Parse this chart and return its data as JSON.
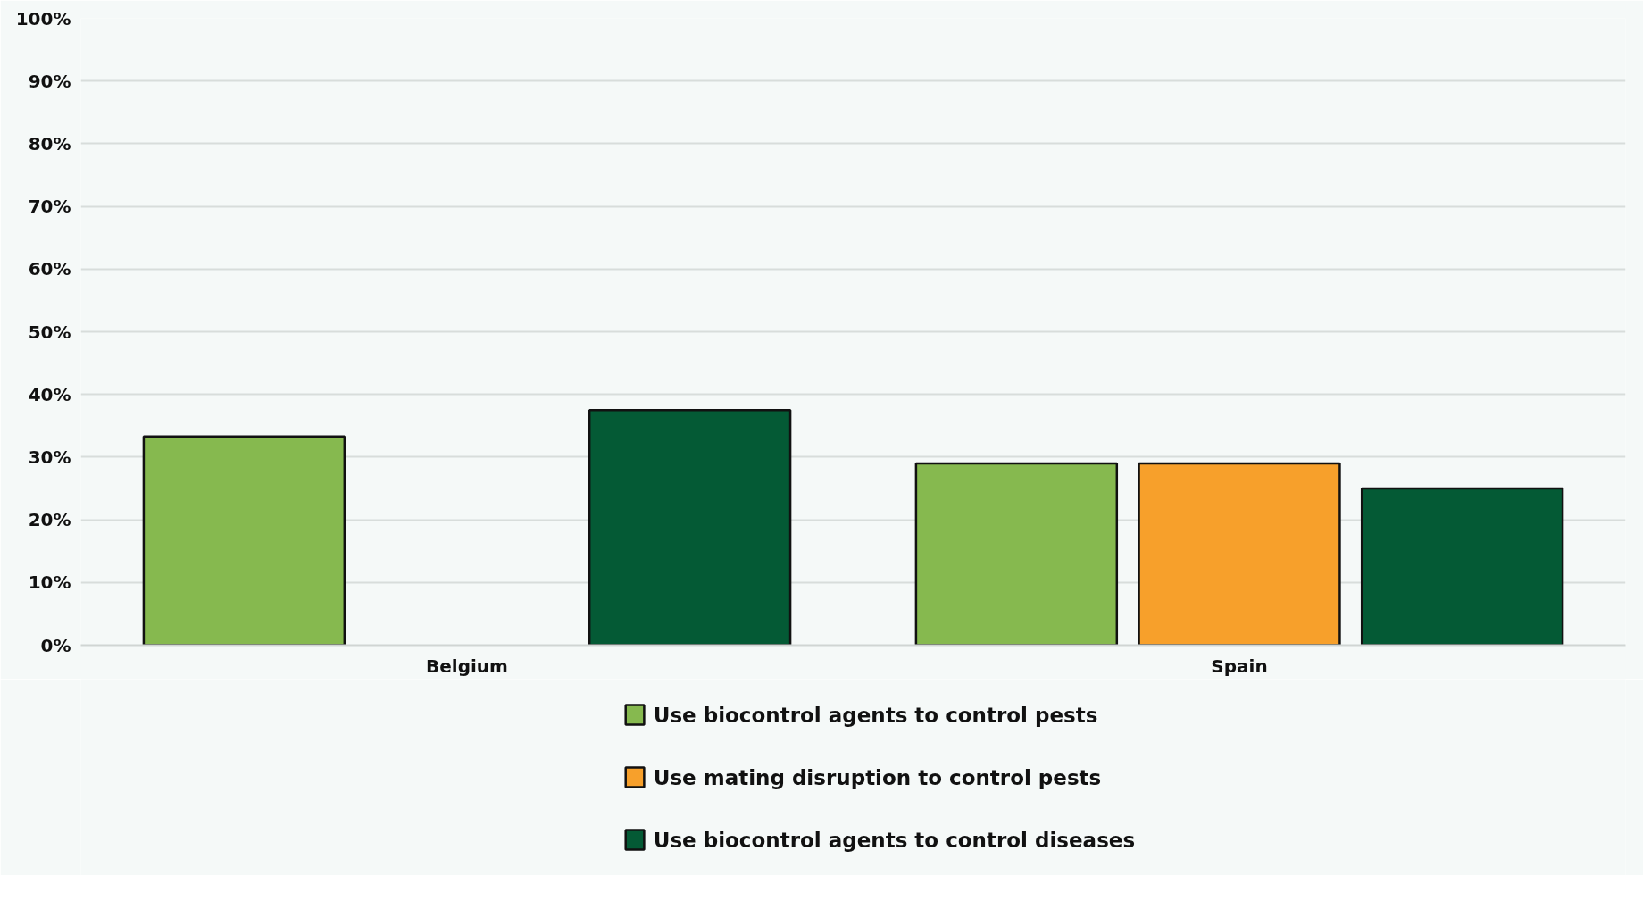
{
  "chart_data": {
    "type": "bar",
    "categories": [
      "Belgium",
      "Spain"
    ],
    "series": [
      {
        "name": "Use biocontrol agents to control pests",
        "color": "#86b94f",
        "values": [
          33.3,
          29
        ]
      },
      {
        "name": "Use mating disruption to control pests",
        "color": "#f7a02b",
        "values": [
          null,
          29
        ]
      },
      {
        "name": "Use biocontrol agents to control diseases",
        "color": "#045a35",
        "values": [
          37.5,
          25
        ]
      }
    ],
    "ylim": [
      0,
      100
    ],
    "yticks": [
      {
        "value": 0,
        "label": "0%"
      },
      {
        "value": 10,
        "label": "10%"
      },
      {
        "value": 20,
        "label": "20%"
      },
      {
        "value": 30,
        "label": "30%"
      },
      {
        "value": 40,
        "label": "40%"
      },
      {
        "value": 50,
        "label": "50%"
      },
      {
        "value": 60,
        "label": "60%"
      },
      {
        "value": 70,
        "label": "70%"
      },
      {
        "value": 80,
        "label": "80%"
      },
      {
        "value": 90,
        "label": "90%"
      },
      {
        "value": 100,
        "label": "100%"
      }
    ],
    "grid": "y",
    "legend": "bottom"
  }
}
